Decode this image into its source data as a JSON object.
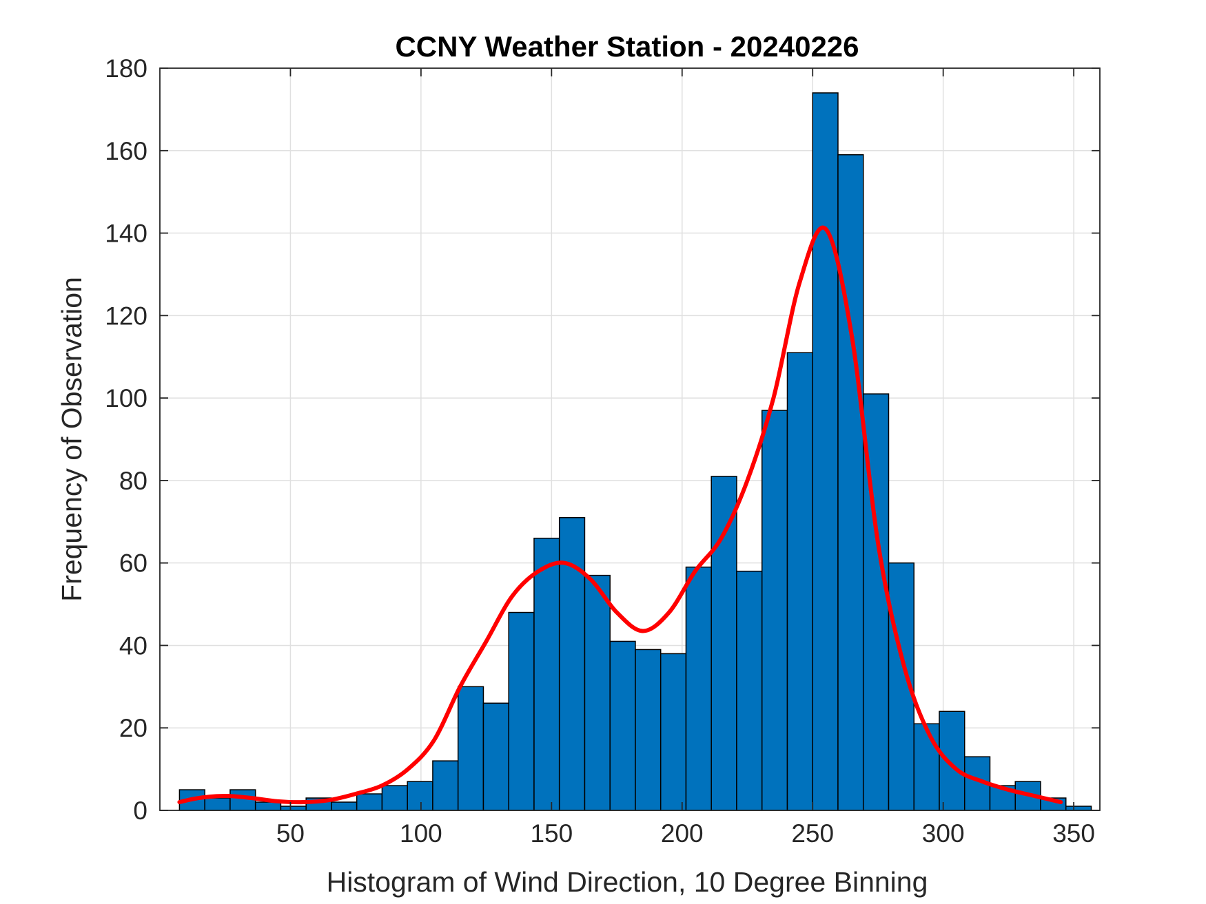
{
  "chart_data": {
    "type": "bar",
    "title": "CCNY Weather Station - 20240226",
    "xlabel": "Histogram of Wind Direction, 10 Degree Binning",
    "ylabel": "Frequency of Observation",
    "xlim": [
      0,
      360
    ],
    "ylim": [
      0,
      180
    ],
    "xticks": [
      50,
      100,
      150,
      200,
      250,
      300,
      350
    ],
    "yticks": [
      0,
      20,
      40,
      60,
      80,
      100,
      120,
      140,
      160,
      180
    ],
    "grid": true,
    "bins": [
      {
        "x0": 7.5,
        "x1": 17.2,
        "value": 5
      },
      {
        "x0": 17.2,
        "x1": 26.9,
        "value": 3
      },
      {
        "x0": 26.9,
        "x1": 36.6,
        "value": 5
      },
      {
        "x0": 36.6,
        "x1": 46.3,
        "value": 2
      },
      {
        "x0": 46.3,
        "x1": 56.0,
        "value": 1
      },
      {
        "x0": 56.0,
        "x1": 65.7,
        "value": 3
      },
      {
        "x0": 65.7,
        "x1": 75.4,
        "value": 2
      },
      {
        "x0": 75.4,
        "x1": 85.1,
        "value": 4
      },
      {
        "x0": 85.1,
        "x1": 94.8,
        "value": 6
      },
      {
        "x0": 94.8,
        "x1": 104.5,
        "value": 7
      },
      {
        "x0": 104.5,
        "x1": 114.2,
        "value": 12
      },
      {
        "x0": 114.2,
        "x1": 123.9,
        "value": 30
      },
      {
        "x0": 123.9,
        "x1": 133.6,
        "value": 26
      },
      {
        "x0": 133.6,
        "x1": 143.3,
        "value": 48
      },
      {
        "x0": 143.3,
        "x1": 153.0,
        "value": 66
      },
      {
        "x0": 153.0,
        "x1": 162.7,
        "value": 71
      },
      {
        "x0": 162.7,
        "x1": 172.4,
        "value": 57
      },
      {
        "x0": 172.4,
        "x1": 182.1,
        "value": 41
      },
      {
        "x0": 182.1,
        "x1": 191.8,
        "value": 39
      },
      {
        "x0": 191.8,
        "x1": 201.5,
        "value": 38
      },
      {
        "x0": 201.5,
        "x1": 211.2,
        "value": 59
      },
      {
        "x0": 211.2,
        "x1": 220.9,
        "value": 81
      },
      {
        "x0": 220.9,
        "x1": 230.6,
        "value": 58
      },
      {
        "x0": 230.6,
        "x1": 240.3,
        "value": 97
      },
      {
        "x0": 240.3,
        "x1": 250.0,
        "value": 111
      },
      {
        "x0": 250.0,
        "x1": 259.7,
        "value": 174
      },
      {
        "x0": 259.7,
        "x1": 269.4,
        "value": 159
      },
      {
        "x0": 269.4,
        "x1": 279.1,
        "value": 101
      },
      {
        "x0": 279.1,
        "x1": 288.8,
        "value": 60
      },
      {
        "x0": 288.8,
        "x1": 298.5,
        "value": 21
      },
      {
        "x0": 298.5,
        "x1": 308.2,
        "value": 24
      },
      {
        "x0": 308.2,
        "x1": 317.9,
        "value": 13
      },
      {
        "x0": 317.9,
        "x1": 327.6,
        "value": 6
      },
      {
        "x0": 327.6,
        "x1": 337.3,
        "value": 7
      },
      {
        "x0": 337.3,
        "x1": 347.0,
        "value": 3
      },
      {
        "x0": 347.0,
        "x1": 356.7,
        "value": 1
      }
    ],
    "series": [
      {
        "type": "line",
        "x": [
          7.5,
          15,
          25,
          35,
          45,
          55,
          65,
          75,
          85,
          95,
          105,
          115,
          125,
          135,
          145,
          155,
          165,
          175,
          185,
          195,
          205,
          215,
          225,
          235,
          245,
          255,
          265,
          275,
          285,
          295,
          305,
          315,
          325,
          335,
          345
        ],
        "y": [
          2,
          3,
          3.5,
          3,
          2.2,
          2,
          2.5,
          4,
          6,
          10,
          17,
          30,
          41,
          52,
          58,
          60,
          56,
          48,
          43.5,
          48,
          58,
          66,
          80,
          100,
          128,
          141,
          115,
          65,
          35,
          18,
          10,
          7,
          5,
          3.5,
          2
        ]
      }
    ],
    "colors": {
      "bar_fill": "#0072BD",
      "bar_edge": "#000000",
      "line": "#FF0000",
      "grid": "#e0e0e0",
      "axes": "#262626"
    }
  }
}
